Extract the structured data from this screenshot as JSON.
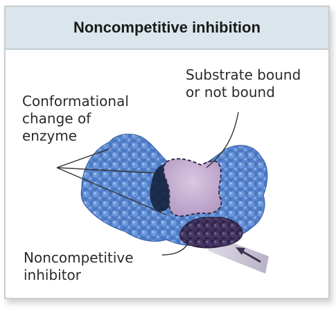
{
  "figure": {
    "title": "Noncompetitive inhibition",
    "labels": {
      "substrate": "Substrate bound\nor not bound",
      "conformational": "Conformational\nchange of\nenzyme",
      "inhibitor": "Noncompetitive\ninhibitor"
    },
    "colors": {
      "header_bg": "#dbe6ec",
      "enzyme": "#4f7fc9",
      "enzyme_dark": "#2d4f8f",
      "substrate_site": "#c9b2d4",
      "inhibitor": "#3c2f57"
    }
  }
}
